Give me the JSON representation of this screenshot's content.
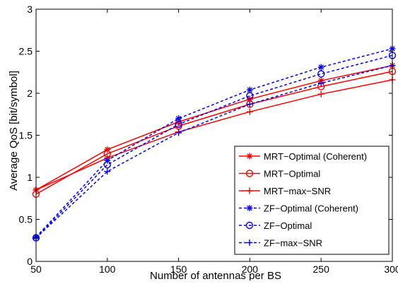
{
  "chart_data": {
    "type": "line",
    "title": "",
    "xlabel": "Number of antennas per BS",
    "ylabel": "Average QoS [bit/symbol]",
    "xlim": [
      50,
      300
    ],
    "ylim": [
      0,
      3
    ],
    "xticks": [
      50,
      100,
      150,
      200,
      250,
      300
    ],
    "yticks": [
      0,
      0.5,
      1,
      1.5,
      2,
      2.5,
      3
    ],
    "ytick_labels": [
      "0",
      "0.5",
      "1",
      "1.5",
      "2",
      "2.5",
      "3"
    ],
    "grid": false,
    "legend_position": "bottom-right",
    "x": [
      50,
      100,
      150,
      200,
      250,
      300
    ],
    "series": [
      {
        "name": "MRT−Optimal (Coherent)",
        "color": "#ff0000",
        "line": "solid",
        "marker": "asterisk",
        "values": [
          0.85,
          1.33,
          1.66,
          1.93,
          2.15,
          2.33
        ]
      },
      {
        "name": "MRT−Optimal",
        "color": "#ff0000",
        "line": "solid",
        "marker": "circle",
        "values": [
          0.8,
          1.28,
          1.61,
          1.87,
          2.08,
          2.26
        ]
      },
      {
        "name": "MRT−max−SNR",
        "color": "#ff0000",
        "line": "solid",
        "marker": "plus",
        "values": [
          0.85,
          1.23,
          1.54,
          1.78,
          1.99,
          2.16
        ]
      },
      {
        "name": "ZF−Optimal (Coherent)",
        "color": "#0000ff",
        "line": "dashed",
        "marker": "asterisk",
        "values": [
          0.29,
          1.2,
          1.7,
          2.04,
          2.31,
          2.53
        ]
      },
      {
        "name": "ZF−Optimal",
        "color": "#0000ff",
        "line": "dashed",
        "marker": "circle",
        "values": [
          0.28,
          1.15,
          1.63,
          1.97,
          2.23,
          2.45
        ]
      },
      {
        "name": "ZF−max−SNR",
        "color": "#0000ff",
        "line": "dashed",
        "marker": "plus",
        "values": [
          0.28,
          1.07,
          1.53,
          1.87,
          2.12,
          2.33
        ]
      }
    ]
  }
}
